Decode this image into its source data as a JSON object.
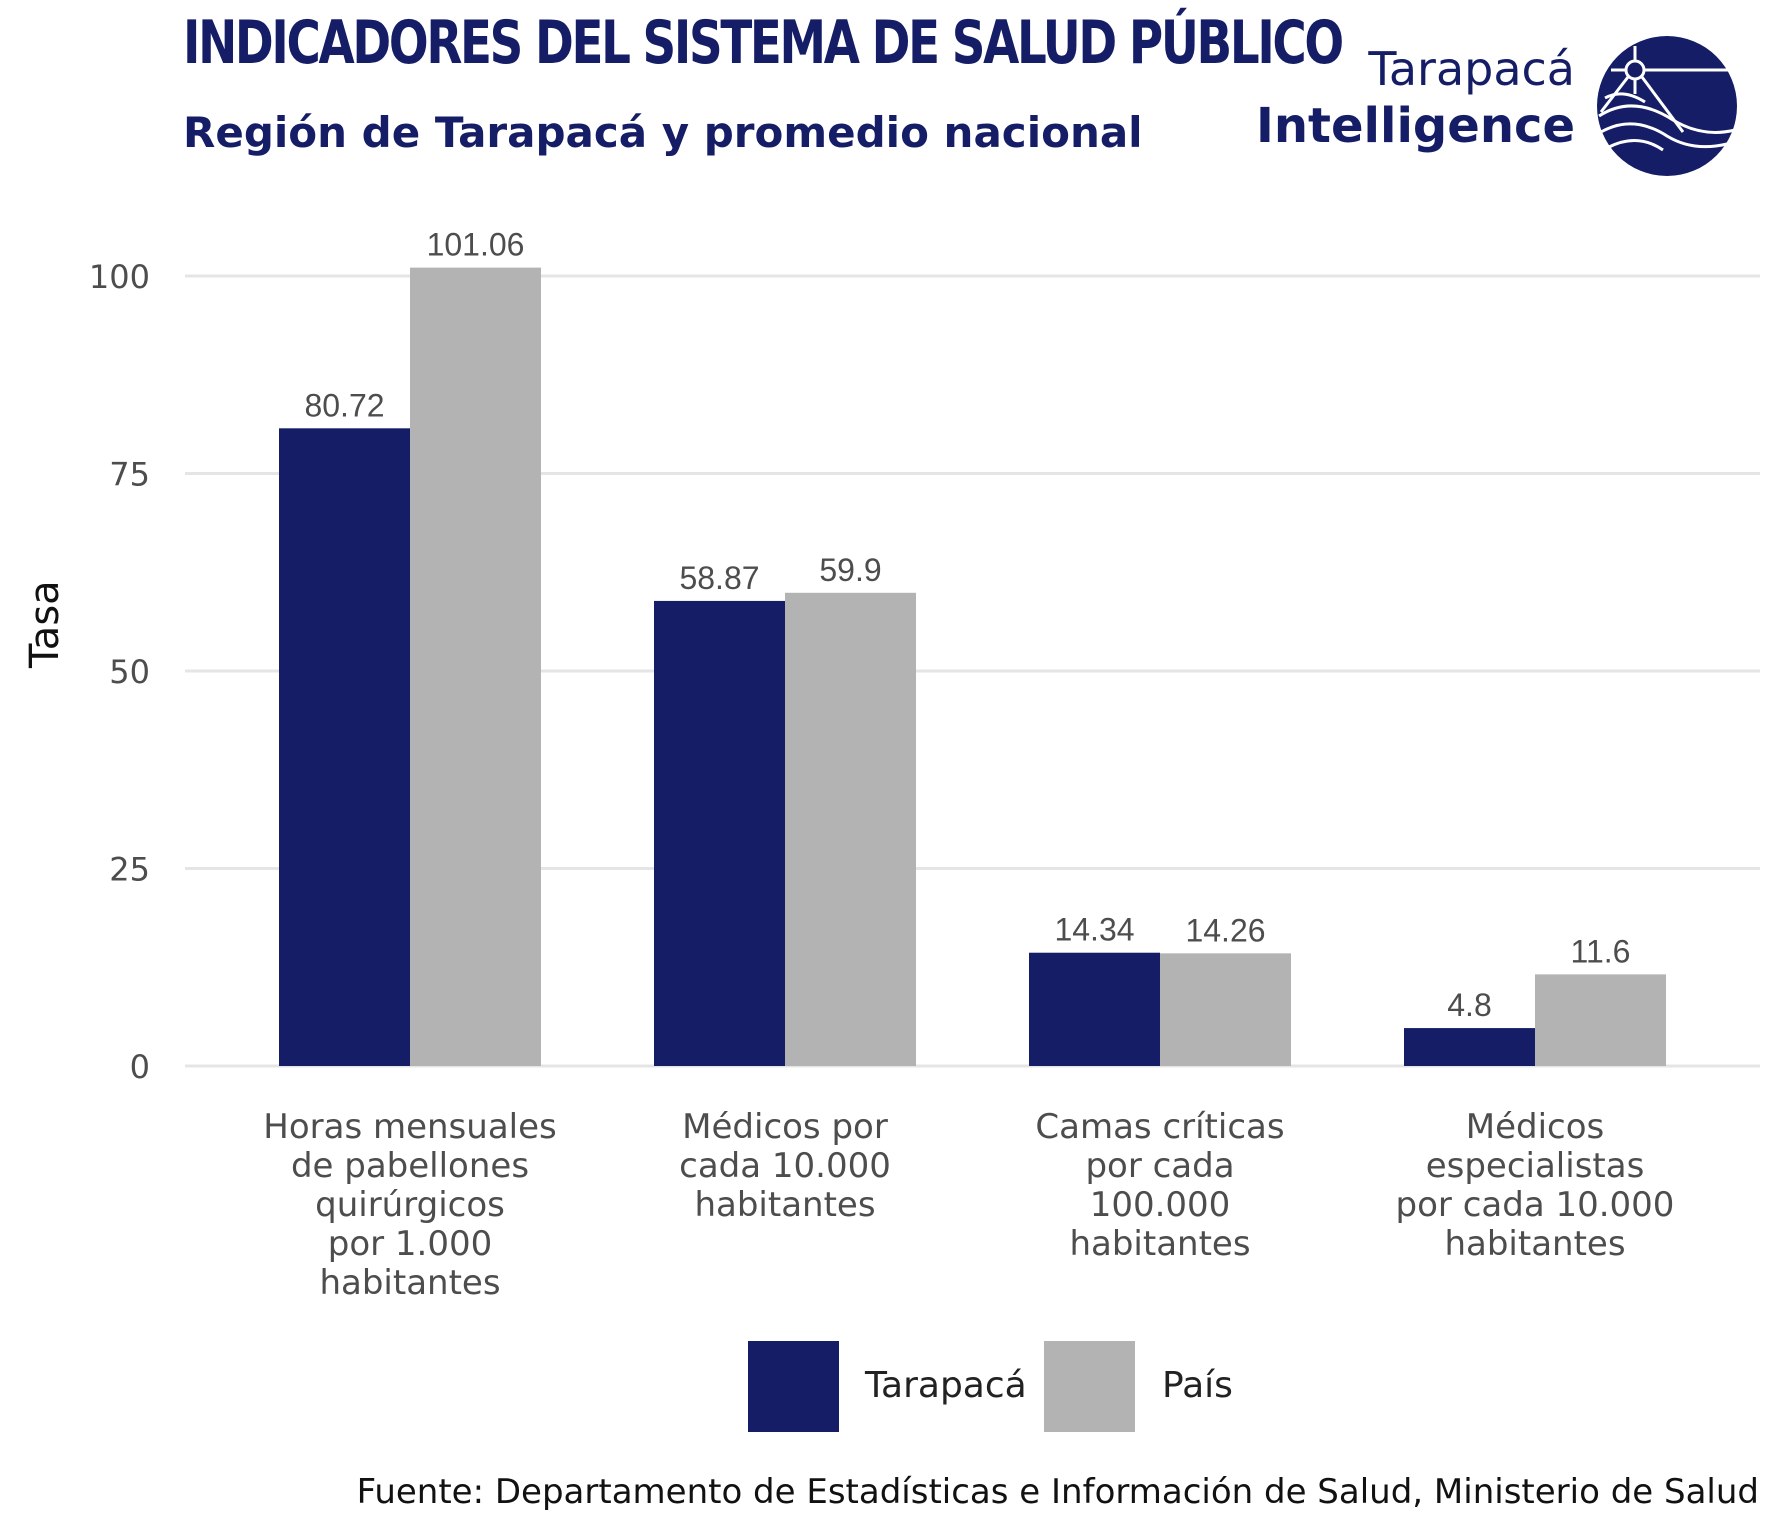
{
  "header": {
    "title": "INDICADORES DEL SISTEMA DE SALUD PÚBLICO",
    "subtitle": "Región de Tarapacá y promedio nacional"
  },
  "logo": {
    "line1": "Tarapacá",
    "line2": "Intelligence",
    "color": "#141d66"
  },
  "chart_data": {
    "type": "bar",
    "ylabel": "Tasa",
    "xlabel": "",
    "ylim": [
      0,
      105
    ],
    "yticks": [
      0,
      25,
      50,
      75,
      100
    ],
    "grid": true,
    "legend_position": "bottom",
    "categories": [
      [
        "Horas mensuales",
        "de pabellones",
        "quirúrgicos",
        "por 1.000",
        "habitantes"
      ],
      [
        "Médicos por",
        "cada 10.000",
        "habitantes"
      ],
      [
        "Camas críticas",
        "por cada",
        "100.000",
        "habitantes"
      ],
      [
        "Médicos",
        "especialistas",
        "por cada 10.000",
        "habitantes"
      ]
    ],
    "series": [
      {
        "name": "Tarapacá",
        "color": "#141d66",
        "values": [
          80.72,
          58.87,
          14.34,
          4.8
        ],
        "labels": [
          "80.72",
          "58.87",
          "14.34",
          "4.8"
        ]
      },
      {
        "name": "País",
        "color": "#b3b3b3",
        "values": [
          101.06,
          59.9,
          14.26,
          11.6
        ],
        "labels": [
          "101.06",
          "59.9",
          "14.26",
          "11.6"
        ]
      }
    ]
  },
  "source": "Fuente: Departamento de Estadísticas e Información de Salud, Ministerio de Salud"
}
